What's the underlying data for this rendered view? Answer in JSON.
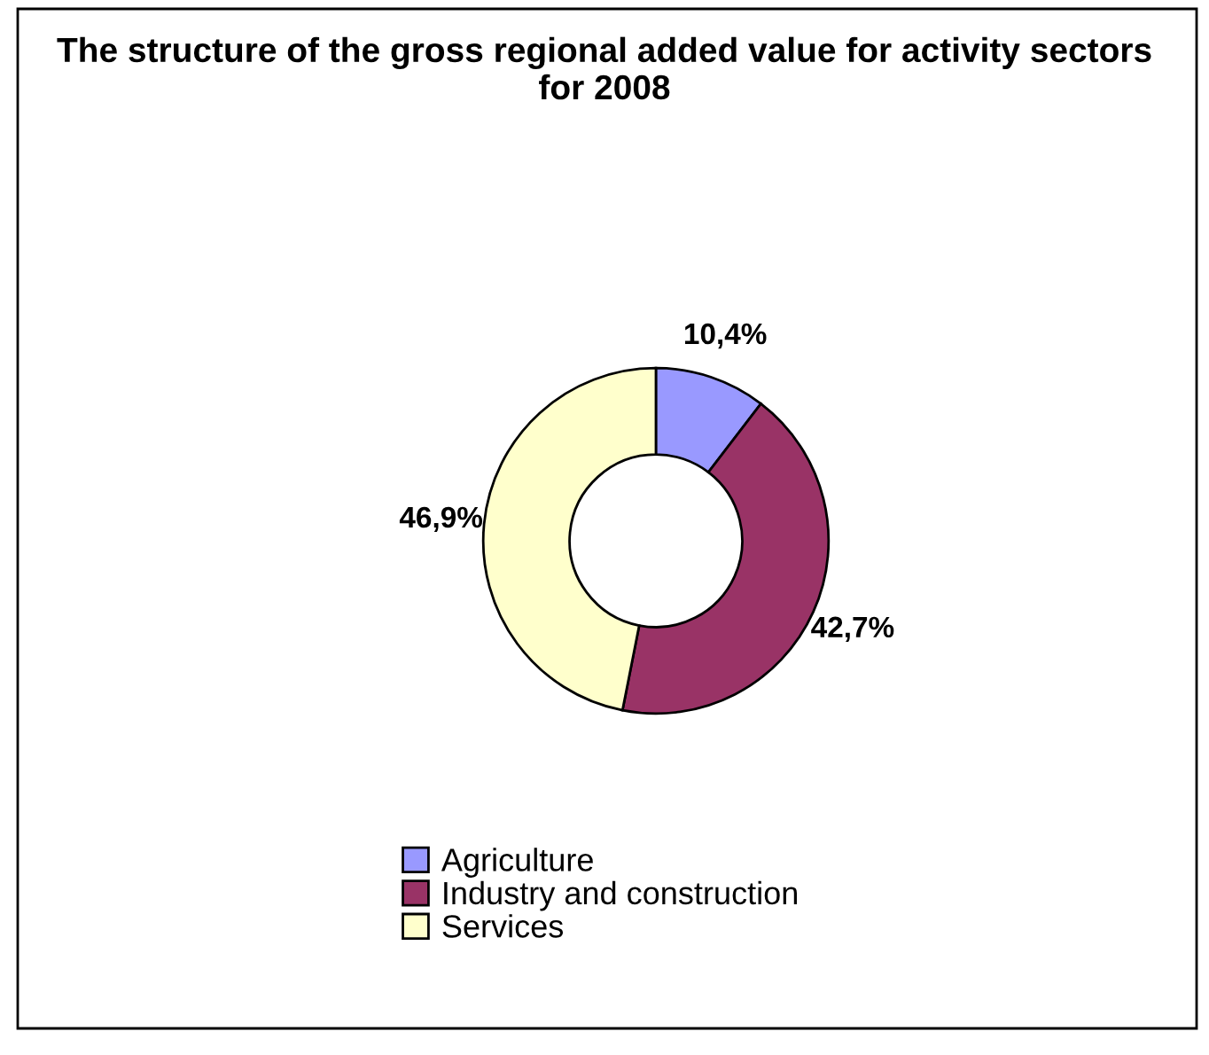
{
  "chart_data": {
    "type": "donut",
    "title": "The structure of the gross regional added value for activity sectors for 2008",
    "categories": [
      "Agriculture",
      "Industry and construction",
      "Services"
    ],
    "values": [
      10.4,
      42.7,
      46.9
    ],
    "colors": [
      "#9999ff",
      "#993366",
      "#ffffcc"
    ],
    "value_labels": [
      "10,4%",
      "42,7%",
      "46,9%"
    ],
    "legend": "bottom"
  }
}
